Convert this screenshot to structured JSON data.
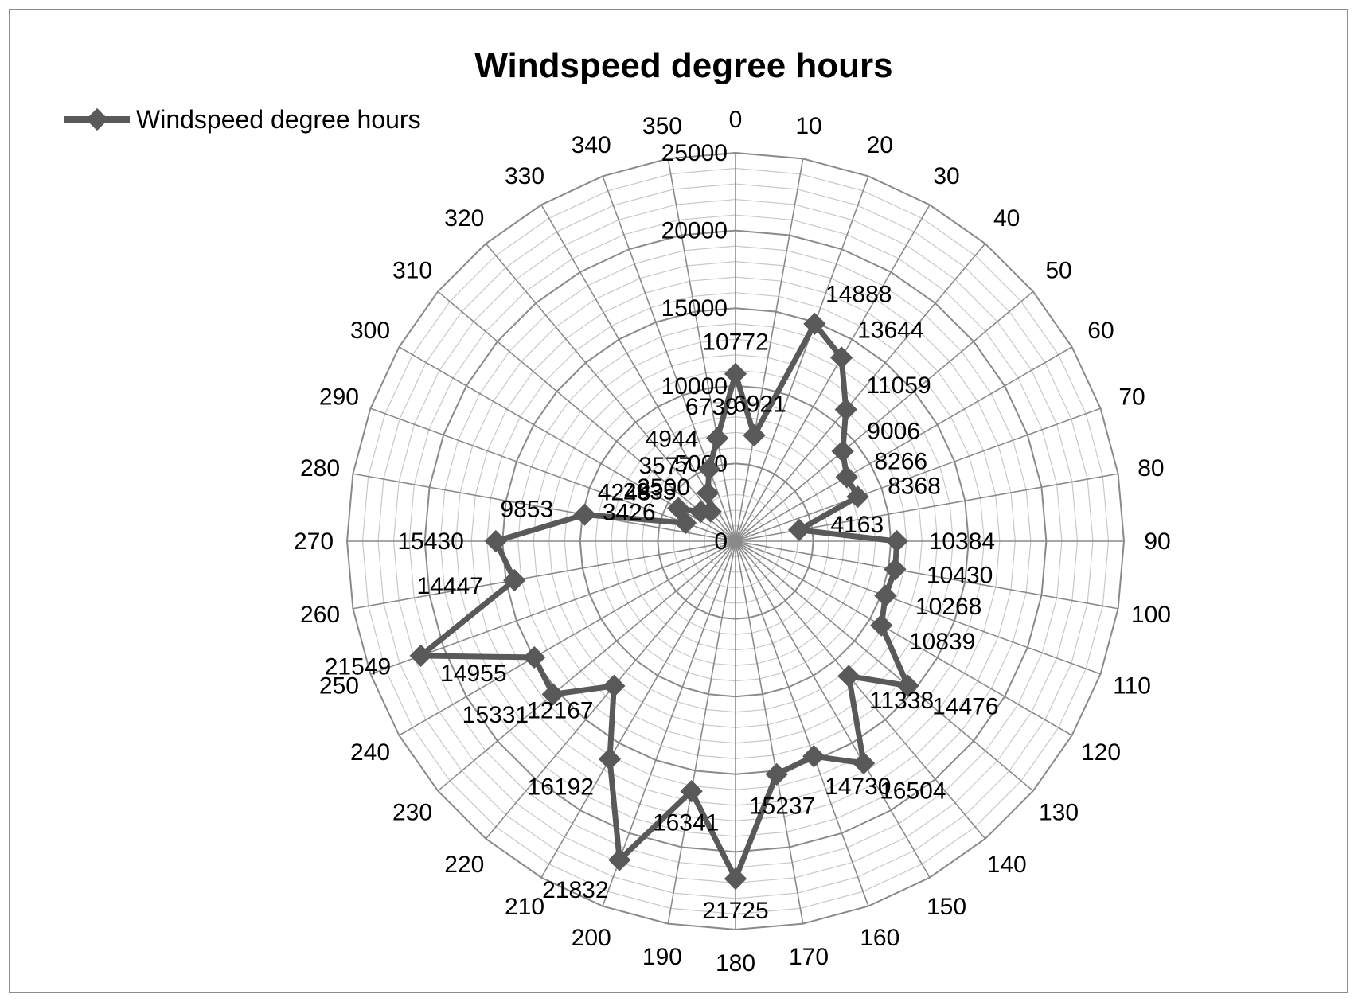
{
  "chart_data": {
    "type": "radar",
    "title": "Windspeed degree hours",
    "legend": {
      "position": "top-left",
      "entries": [
        "Windspeed degree hours"
      ]
    },
    "radial_axis": {
      "min": 0,
      "max": 25000,
      "major_step": 5000,
      "minor_step": 1000,
      "tick_labels": [
        "0",
        "5000",
        "10000",
        "15000",
        "20000",
        "25000"
      ]
    },
    "angle_labels": [
      "0",
      "10",
      "20",
      "30",
      "40",
      "50",
      "60",
      "70",
      "80",
      "90",
      "100",
      "110",
      "120",
      "130",
      "140",
      "150",
      "160",
      "170",
      "180",
      "190",
      "200",
      "210",
      "220",
      "230",
      "240",
      "250",
      "260",
      "270",
      "280",
      "290",
      "300",
      "310",
      "320",
      "330",
      "340",
      "350"
    ],
    "series": [
      {
        "name": "Windspeed degree hours",
        "color": "#595959",
        "values": [
          10772,
          6921,
          14888,
          13644,
          11059,
          9006,
          8266,
          8368,
          4163,
          10384,
          10430,
          10268,
          10839,
          14476,
          11338,
          16504,
          14730,
          15237,
          21725,
          16341,
          21832,
          16192,
          12167,
          15331,
          14955,
          21549,
          14447,
          15430,
          9853,
          3426,
          4248,
          2935,
          2500,
          3577,
          4944,
          6739
        ]
      }
    ],
    "data_labels": [
      "10772",
      "6921",
      "14888",
      "13644",
      "11059",
      "9006",
      "8266",
      "8368",
      "4163",
      "10384",
      "10430",
      "10268",
      "10839",
      "14476",
      "11338",
      "16504",
      "14730",
      "15237",
      "21725",
      "16341",
      "21832",
      "16192",
      "12167",
      "15331",
      "14955",
      "21549",
      "14447",
      "15430",
      "9853",
      "3426",
      "4248",
      "2935",
      "2500",
      "3577",
      "4944",
      "6739"
    ]
  }
}
